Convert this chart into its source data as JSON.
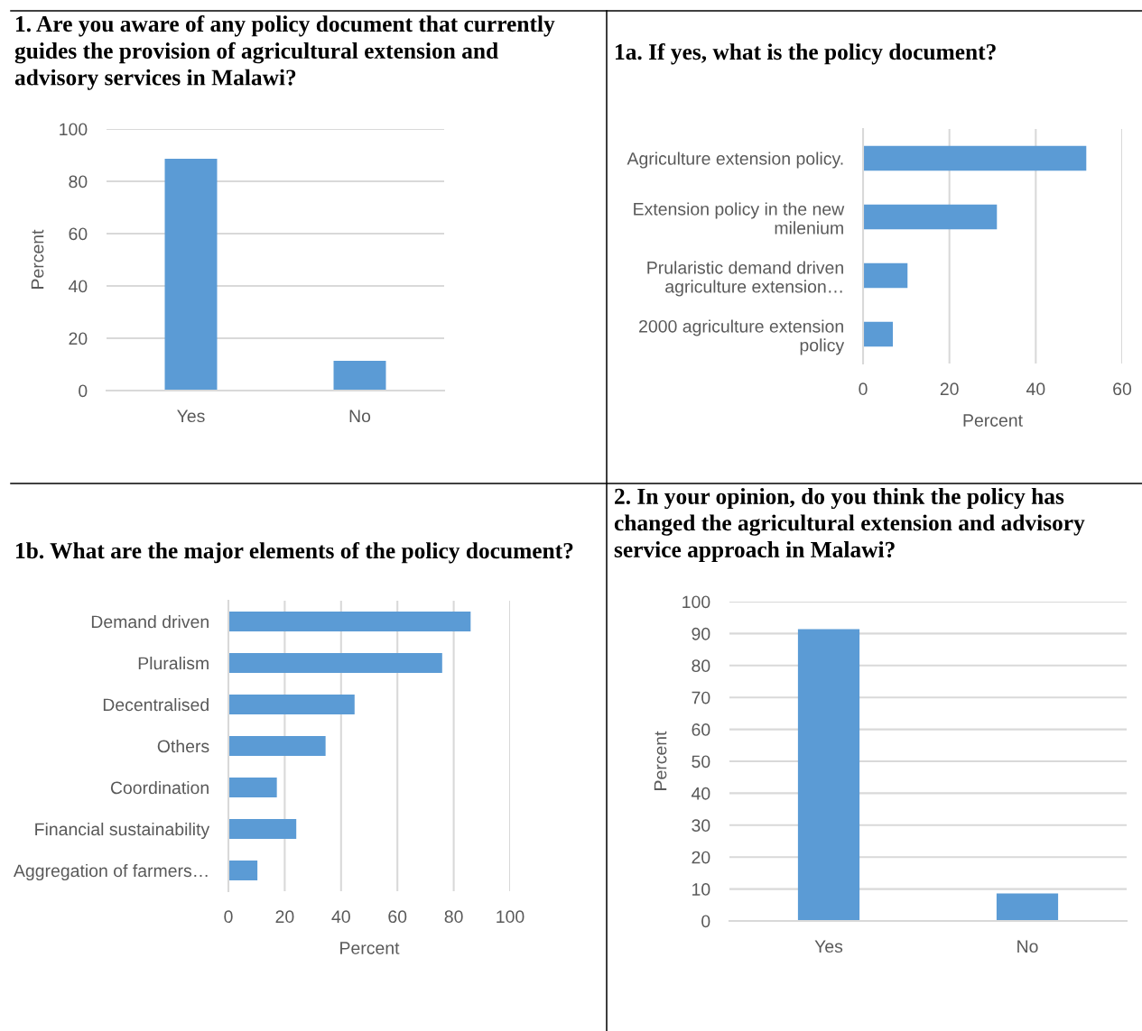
{
  "chart_data": [
    {
      "type": "bar",
      "title": "1. Are you aware of any policy document that currently\nguides the provision of agricultural extension and\nadvisory services in Malawi?",
      "categories": [
        "Yes",
        "No"
      ],
      "values": [
        88.6,
        11.4
      ],
      "color": "#5b9bd5",
      "ylabel": "Percent",
      "ylim": [
        0,
        100
      ],
      "yticks": [
        0,
        20,
        40,
        60,
        80,
        100
      ],
      "grid": "y"
    },
    {
      "type": "bar",
      "orientation": "horizontal",
      "title": "1a. If yes, what is the policy document?",
      "categories": [
        "Agriculture extension policy.",
        "Extension policy in the new\nmilenium",
        "Prularistic demand driven\nagriculture extension…",
        "2000 agriculture extension\npolicy"
      ],
      "values": [
        51.7,
        31.0,
        10.3,
        6.9
      ],
      "color": "#5b9bd5",
      "xlabel": "Percent",
      "xlim": [
        0,
        60
      ],
      "xticks": [
        0,
        20,
        40,
        60
      ],
      "grid": "x"
    },
    {
      "type": "bar",
      "orientation": "horizontal",
      "title": "1b. What are the major elements of the policy document?",
      "categories": [
        "Demand driven",
        "Pluralism",
        "Decentralised",
        "Others",
        "Coordination",
        "Financial sustainability",
        "Aggregation of farmers…"
      ],
      "values": [
        86.0,
        75.9,
        44.8,
        34.5,
        17.2,
        24.1,
        10.3
      ],
      "color": "#5b9bd5",
      "xlabel": "Percent",
      "xlim": [
        0,
        100
      ],
      "xticks": [
        0,
        20,
        40,
        60,
        80,
        100
      ],
      "grid": "x"
    },
    {
      "type": "bar",
      "title": "2. In your opinion, do you think the policy has\nchanged the agricultural extension and advisory\nservice approach in Malawi?",
      "categories": [
        "Yes",
        "No"
      ],
      "values": [
        91.4,
        8.6
      ],
      "color": "#5b9bd5",
      "ylabel": "Percent",
      "ylim": [
        0,
        100
      ],
      "yticks": [
        0,
        10,
        20,
        30,
        40,
        50,
        60,
        70,
        80,
        90,
        100
      ],
      "grid": "y"
    }
  ]
}
